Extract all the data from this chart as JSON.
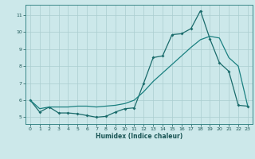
{
  "xlabel": "Humidex (Indice chaleur)",
  "bg_color": "#cce8ea",
  "grid_color": "#aacdd0",
  "line1_color": "#1a6b6b",
  "line2_color": "#1a8080",
  "xlim": [
    -0.5,
    23.5
  ],
  "ylim": [
    4.6,
    11.6
  ],
  "xticks": [
    0,
    1,
    2,
    3,
    4,
    5,
    6,
    7,
    8,
    9,
    10,
    11,
    12,
    13,
    14,
    15,
    16,
    17,
    18,
    19,
    20,
    21,
    22,
    23
  ],
  "yticks": [
    5,
    6,
    7,
    8,
    9,
    10,
    11
  ],
  "line1_x": [
    0,
    1,
    2,
    3,
    4,
    5,
    6,
    7,
    8,
    9,
    10,
    11,
    12,
    13,
    14,
    15,
    16,
    17,
    18,
    19,
    20,
    21,
    22,
    23
  ],
  "line1_y": [
    6.0,
    5.3,
    5.6,
    5.25,
    5.25,
    5.2,
    5.1,
    5.0,
    5.05,
    5.3,
    5.5,
    5.55,
    7.0,
    8.5,
    8.6,
    9.85,
    9.9,
    10.2,
    11.25,
    9.6,
    8.2,
    7.7,
    5.7,
    5.65
  ],
  "line2_x": [
    0,
    1,
    2,
    3,
    4,
    5,
    6,
    7,
    8,
    9,
    10,
    11,
    12,
    13,
    14,
    15,
    16,
    17,
    18,
    19,
    20,
    21,
    22,
    23
  ],
  "line2_y": [
    6.0,
    5.5,
    5.6,
    5.6,
    5.6,
    5.65,
    5.65,
    5.6,
    5.65,
    5.7,
    5.8,
    6.0,
    6.5,
    7.1,
    7.6,
    8.1,
    8.6,
    9.1,
    9.55,
    9.75,
    9.65,
    8.5,
    8.0,
    5.65
  ]
}
